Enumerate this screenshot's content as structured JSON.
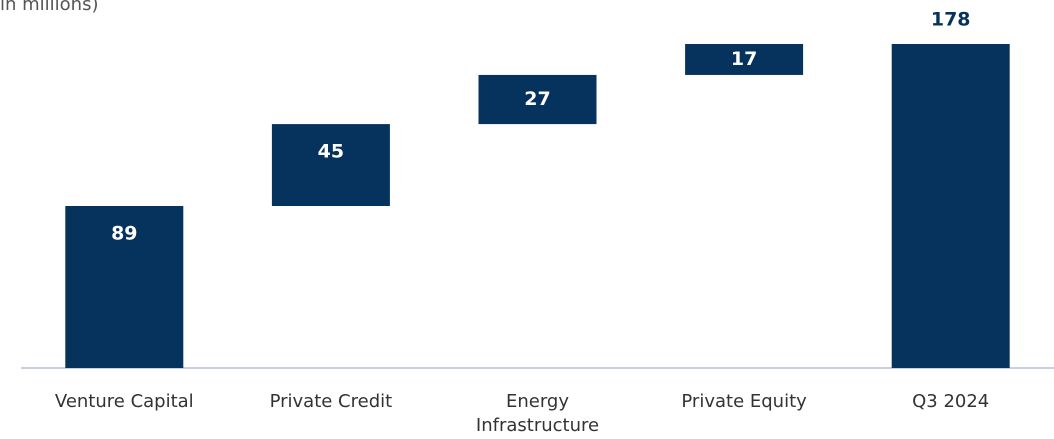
{
  "chart_data": {
    "type": "waterfall",
    "subtitle": "in millions)",
    "categories": [
      "Venture Capital",
      "Private Credit",
      "Energy Infrastructure",
      "Private Equity",
      "Q3 2024"
    ],
    "values": [
      89,
      45,
      27,
      17,
      178
    ],
    "is_total": [
      false,
      false,
      false,
      false,
      true
    ],
    "color": "#06325e",
    "ylim": [
      0,
      178
    ]
  }
}
